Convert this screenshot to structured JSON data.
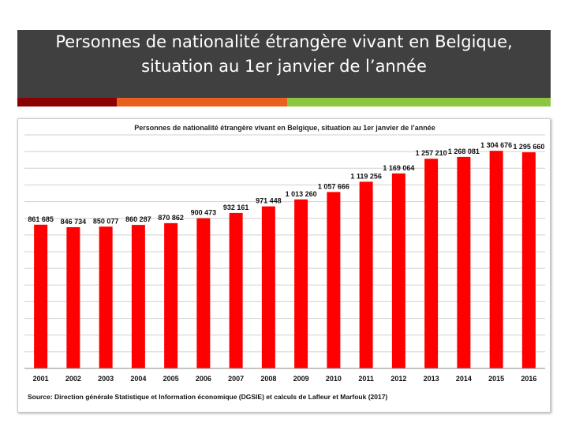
{
  "header": {
    "title_line1": "Personnes de nationalité étrangère vivant en Belgique,",
    "title_line2": "situation au 1er janvier de l’année"
  },
  "colors": {
    "header_bg": "#404040",
    "accent_dark_red": "#8b0000",
    "accent_orange": "#e8601c",
    "accent_green": "#8cc63f",
    "bar_fill": "#ff0000"
  },
  "chart_data": {
    "type": "bar",
    "title": "Personnes de nationalité étrangère vivant en Belgique, situation au 1er janvier de l’année",
    "categories": [
      "2001",
      "2002",
      "2003",
      "2004",
      "2005",
      "2006",
      "2007",
      "2008",
      "2009",
      "2010",
      "2011",
      "2012",
      "2013",
      "2014",
      "2015",
      "2016"
    ],
    "values": [
      861685,
      846734,
      850077,
      860287,
      870862,
      900473,
      932161,
      971448,
      1013260,
      1057666,
      1119256,
      1169064,
      1257210,
      1268081,
      1304676,
      1295660
    ],
    "value_labels": [
      "861 685",
      "846 734",
      "850 077",
      "860 287",
      "870 862",
      "900 473",
      "932 161",
      "971 448",
      "1 013 260",
      "1 057 666",
      "1 119 256",
      "1 169 064",
      "1 257 210",
      "1 268 081",
      "1 304 676",
      "1 295 660"
    ],
    "xlabel": "",
    "ylabel": "",
    "ylim": [
      0,
      1400000
    ],
    "y_axis_labels_shown": false,
    "grid": true,
    "source": "Source: Direction générale Statistique et Information économique (DGSIE) et calculs de Lafleur et Marfouk (2017)"
  }
}
